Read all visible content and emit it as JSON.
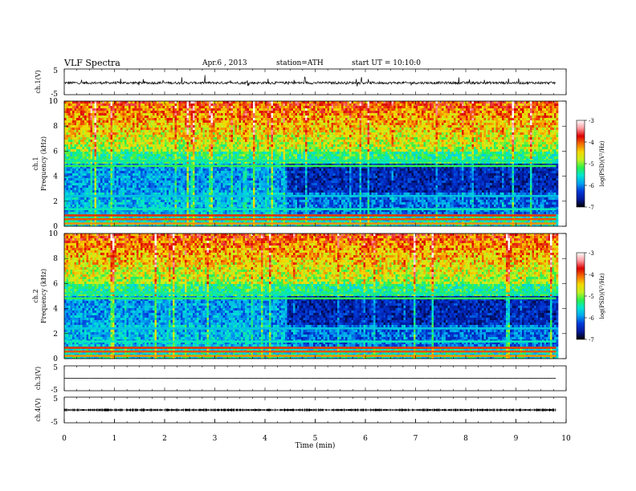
{
  "header": {
    "title": "VLF Spectra",
    "date": "Apr.6 , 2013",
    "station": "station=ATH",
    "start": "start UT = 10:10:0"
  },
  "colors": {
    "colormap": [
      "#000000",
      "#001a9c",
      "#0038d8",
      "#00a4f0",
      "#00e6d2",
      "#2ef04a",
      "#c4f020",
      "#f4d800",
      "#f47000",
      "#dc0000",
      "#ff9aa0",
      "#ffffff"
    ]
  },
  "chart_data": [
    {
      "type": "line",
      "name": "waveform-ch1",
      "ylabel": "ch.1(V)",
      "ylim": [
        -5,
        5
      ],
      "yticks": [
        "5",
        "-5"
      ],
      "baseline_v": -0.5,
      "amplitude_v": 1.2
    },
    {
      "type": "heatmap",
      "name": "spectrogram-ch1",
      "ylabel_top": "ch.1",
      "ylabel": "Frequency (kHz)",
      "ylim": [
        0,
        10
      ],
      "yticks": [
        "0",
        "2",
        "4",
        "6",
        "8",
        "10"
      ],
      "colorbar": {
        "label": "log(PSD)(V²/Hz)",
        "range": [
          -7,
          -3
        ],
        "ticks": [
          "-3",
          "-4",
          "-5",
          "-6",
          "-7"
        ]
      },
      "band_shift_time_min": 4.4
    },
    {
      "type": "heatmap",
      "name": "spectrogram-ch2",
      "ylabel_top": "ch.2",
      "ylabel": "Frequency (kHz)",
      "ylim": [
        0,
        10
      ],
      "yticks": [
        "0",
        "2",
        "4",
        "6",
        "8",
        "10"
      ],
      "colorbar": {
        "label": "log(PSD)(V²/Hz)",
        "range": [
          -7,
          -3
        ],
        "ticks": [
          "-3",
          "-4",
          "-5",
          "-6",
          "-7"
        ]
      },
      "band_shift_time_min": 4.4
    },
    {
      "type": "line",
      "name": "waveform-ch3",
      "ylabel": "ch.3(V)",
      "ylim": [
        -5,
        5
      ],
      "yticks": [
        "5",
        "-5"
      ],
      "baseline_v": 0,
      "amplitude_v": 0.1
    },
    {
      "type": "line",
      "name": "waveform-ch4",
      "ylabel": "ch.4(V)",
      "ylim": [
        -5,
        5
      ],
      "yticks": [
        "5",
        "-5"
      ],
      "baseline_v": 0,
      "amplitude_v": 0.3
    }
  ],
  "xaxis": {
    "label": "Time (min)",
    "range": [
      0,
      10
    ],
    "ticks": [
      "0",
      "1",
      "2",
      "3",
      "4",
      "5",
      "6",
      "7",
      "8",
      "9",
      "10"
    ],
    "data_end_min": 9.8
  }
}
